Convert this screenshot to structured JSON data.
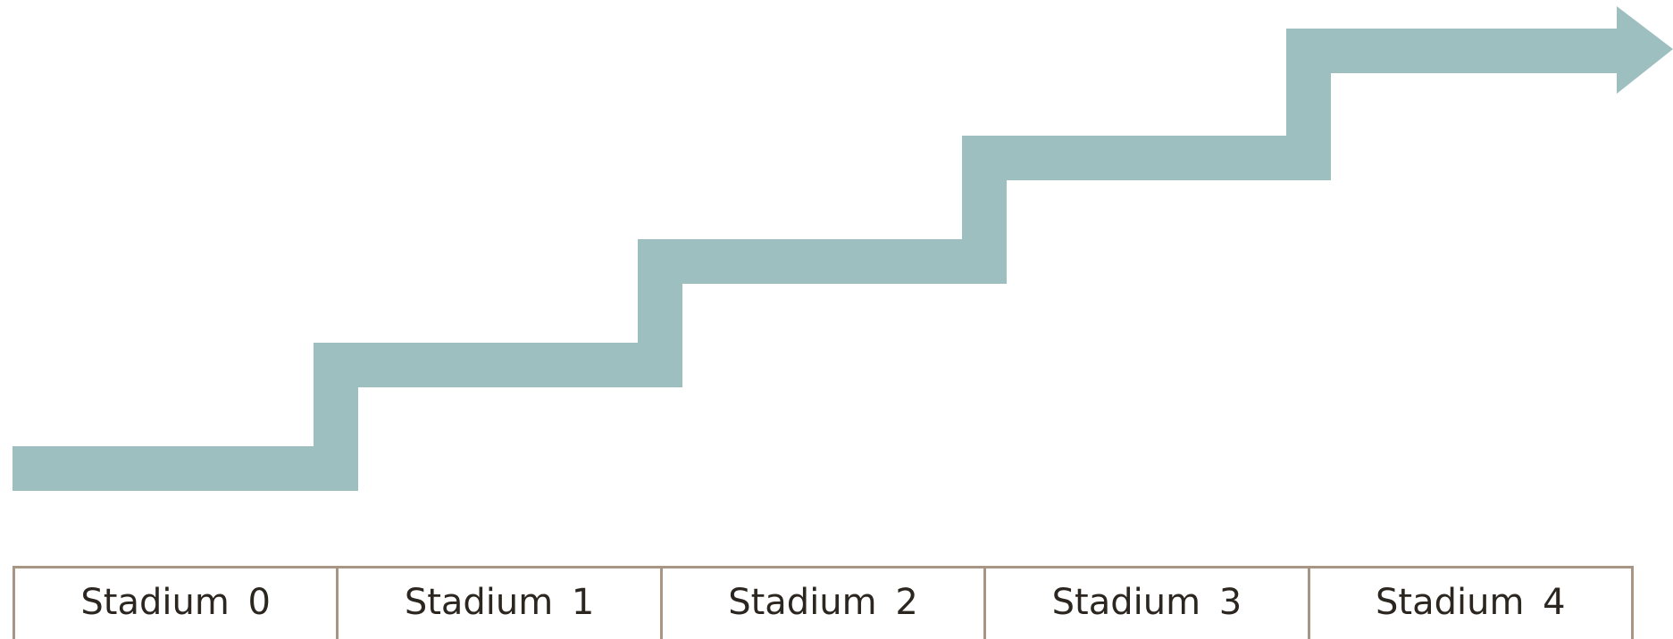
{
  "diagram": {
    "arrow_color": "#9dbfbf",
    "border_color": "#a89584",
    "text_color": "#2b2620",
    "stages": [
      {
        "label": "Stadium 0"
      },
      {
        "label": "Stadium 1"
      },
      {
        "label": "Stadium 2"
      },
      {
        "label": "Stadium 3"
      },
      {
        "label": "Stadium 4"
      }
    ]
  }
}
